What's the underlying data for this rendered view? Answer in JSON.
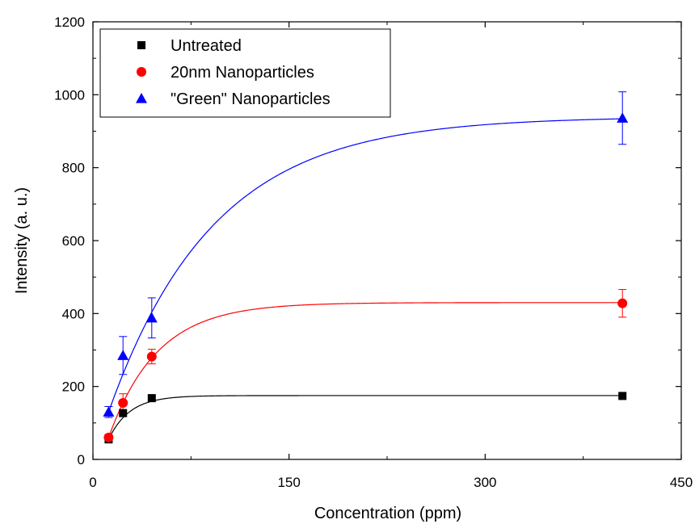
{
  "chart_data": {
    "type": "scatter",
    "xlabel": "Concentration (ppm)",
    "ylabel": "Intensity (a. u.)",
    "xlim": [
      0,
      450
    ],
    "ylim": [
      0,
      1200
    ],
    "xticks": [
      0,
      150,
      300,
      450
    ],
    "yticks": [
      0,
      200,
      400,
      600,
      800,
      1000,
      1200
    ],
    "grid": false,
    "legend_position": "top-left",
    "series": [
      {
        "name": "Untreated",
        "marker": "square",
        "color": "#000000",
        "x": [
          12,
          23,
          45,
          405
        ],
        "y": [
          55,
          127,
          168,
          174
        ],
        "error": [
          0,
          0,
          0,
          0
        ],
        "fit": {
          "a": 175,
          "k": 0.062
        }
      },
      {
        "name": "20nm Nanoparticles",
        "marker": "circle",
        "color": "#ff0000",
        "x": [
          12,
          23,
          45,
          405
        ],
        "y": [
          60,
          155,
          282,
          428
        ],
        "error": [
          8,
          25,
          20,
          38
        ],
        "fit": {
          "a": 430,
          "k": 0.027
        }
      },
      {
        "name": "\"Green\" Nanoparticles",
        "marker": "triangle",
        "color": "#0000ff",
        "x": [
          12,
          23,
          45,
          405
        ],
        "y": [
          130,
          285,
          388,
          936
        ],
        "error": [
          15,
          52,
          55,
          72
        ],
        "fit": {
          "a": 940,
          "k": 0.0125
        }
      }
    ]
  }
}
